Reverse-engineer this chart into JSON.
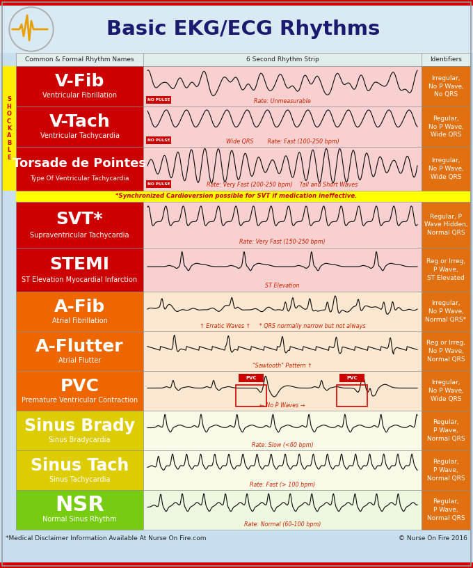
{
  "title": "Basic EKG/ECG Rhythms",
  "bg_color": "#c8dff0",
  "col_headers": [
    "Common & Formal Rhythm Names",
    "6 Second Rhythm Strip",
    "Identifiers"
  ],
  "footer_left": "*Medical Disclaimer Information Available At Nurse On Fire.com",
  "footer_right": "© Nurse On Fire 2016",
  "shockable_note": "*Synchronized Cardioversion possible for SVT if medication ineffective.",
  "top_red_bar_color": "#cc0000",
  "header_bg": "#daeaf5",
  "title_color": "#1a1a6e",
  "col_header_bg": "#e0eeee",
  "col_header_border": "#aaaaaa",
  "shockable_bg": "#ffee00",
  "shockable_fg": "#cc0000",
  "sync_bg": "#ffff00",
  "sync_fg": "#cc0000",
  "rows": [
    {
      "name": "V-Fib",
      "subname": "Ventricular Fibrillation",
      "name_bg": "#cc0000",
      "name_fg": "#ffffff",
      "strip_bg": "#f8d0d0",
      "strip_label": "Rate: Unmeasurable",
      "strip_tag": "NO PULSE",
      "identifiers": "Irregular,\nNo P Wave,\nNo QRS",
      "id_bg": "#e07010",
      "id_fg": "#ffffff",
      "ecg_type": "vfib",
      "shockable": true,
      "name_size": 18,
      "sub_size": 7
    },
    {
      "name": "V-Tach",
      "subname": "Ventricular Tachycardia",
      "name_bg": "#cc0000",
      "name_fg": "#ffffff",
      "strip_bg": "#f8d0d0",
      "strip_label": "Wide QRS        Rate: Fast (100-250 bpm)",
      "strip_tag": "NO PULSE",
      "identifiers": "Regular,\nNo P Wave,\nWide QRS",
      "id_bg": "#e07010",
      "id_fg": "#ffffff",
      "ecg_type": "vtach",
      "shockable": true,
      "name_size": 18,
      "sub_size": 7
    },
    {
      "name": "Torsade de Pointes",
      "subname": "Type Of Ventricular Tachycardia",
      "name_bg": "#cc0000",
      "name_fg": "#ffffff",
      "strip_bg": "#f8d0d0",
      "strip_label": "Rate: Very Fast (200-250 bpm)    Tall and Short Waves",
      "strip_tag": "NO PULSE",
      "identifiers": "Irregular,\nNo P Wave,\nWide QRS",
      "id_bg": "#e07010",
      "id_fg": "#ffffff",
      "ecg_type": "torsade",
      "shockable": true,
      "name_size": 13,
      "sub_size": 6.5
    },
    {
      "name": "SVT*",
      "subname": "Supraventricular Tachycardia",
      "name_bg": "#cc0000",
      "name_fg": "#ffffff",
      "strip_bg": "#f8d0d0",
      "strip_label": "Rate: Very Fast (150-250 bpm)",
      "strip_tag": "",
      "identifiers": "Regular, P\nWave Hidden,\nNormal QRS",
      "id_bg": "#e07010",
      "id_fg": "#ffffff",
      "ecg_type": "svt",
      "shockable": false,
      "name_size": 18,
      "sub_size": 7
    },
    {
      "name": "STEMI",
      "subname": "ST Elevation Myocardial Infarction",
      "name_bg": "#cc0000",
      "name_fg": "#ffffff",
      "strip_bg": "#f8d0d0",
      "strip_label": "ST Elevation",
      "strip_tag": "",
      "identifiers": "Reg or Irreg,\nP Wave,\nST Elevated",
      "id_bg": "#e07010",
      "id_fg": "#ffffff",
      "ecg_type": "stemi",
      "shockable": false,
      "name_size": 18,
      "sub_size": 7
    },
    {
      "name": "A-Fib",
      "subname": "Atrial Fibrillation",
      "name_bg": "#ee6600",
      "name_fg": "#ffffff",
      "strip_bg": "#fce8d0",
      "strip_label": "↑ Erratic Waves ↑     * QRS normally narrow but not always",
      "strip_tag": "",
      "identifiers": "Irregular,\nNo P Wave,\nNormal QRS*",
      "id_bg": "#e07010",
      "id_fg": "#ffffff",
      "ecg_type": "afib",
      "shockable": false,
      "name_size": 18,
      "sub_size": 7
    },
    {
      "name": "A-Flutter",
      "subname": "Atrial Flutter",
      "name_bg": "#ee6600",
      "name_fg": "#ffffff",
      "strip_bg": "#fce8d0",
      "strip_label": "\"Sawtooth\" Pattern ↑",
      "strip_tag": "",
      "identifiers": "Reg or Irreg,\nNo P Wave,\nNormal QRS",
      "id_bg": "#e07010",
      "id_fg": "#ffffff",
      "ecg_type": "aflutter",
      "shockable": false,
      "name_size": 18,
      "sub_size": 7
    },
    {
      "name": "PVC",
      "subname": "Premature Ventricular Contraction",
      "name_bg": "#ee6600",
      "name_fg": "#ffffff",
      "strip_bg": "#fce8d0",
      "strip_label": "← No P Waves →",
      "strip_tag": "PVC",
      "identifiers": "Irregular,\nNo P Wave,\nWide QRS",
      "id_bg": "#e07010",
      "id_fg": "#ffffff",
      "ecg_type": "pvc",
      "shockable": false,
      "name_size": 18,
      "sub_size": 7
    },
    {
      "name": "Sinus Brady",
      "subname": "Sinus Bradycardia",
      "name_bg": "#ddcc00",
      "name_fg": "#ffffff",
      "strip_bg": "#fafae8",
      "strip_label": "Rate: Slow (<60 bpm)",
      "strip_tag": "",
      "identifiers": "Regular,\nP Wave,\nNormal QRS",
      "id_bg": "#e07010",
      "id_fg": "#ffffff",
      "ecg_type": "sinus_brady",
      "shockable": false,
      "name_size": 17,
      "sub_size": 7
    },
    {
      "name": "Sinus Tach",
      "subname": "Sinus Tachycardia",
      "name_bg": "#ddcc00",
      "name_fg": "#ffffff",
      "strip_bg": "#fafae8",
      "strip_label": "Rate: Fast (> 100 bpm)",
      "strip_tag": "",
      "identifiers": "Regular,\nP Wave,\nNormal QRS",
      "id_bg": "#e07010",
      "id_fg": "#ffffff",
      "ecg_type": "sinus_tach",
      "shockable": false,
      "name_size": 17,
      "sub_size": 7
    },
    {
      "name": "NSR",
      "subname": "Normal Sinus Rhythm",
      "name_bg": "#77cc11",
      "name_fg": "#ffffff",
      "strip_bg": "#eef8e0",
      "strip_label": "Rate: Normal (60-100 bpm)",
      "strip_tag": "",
      "identifiers": "Regular,\nP Wave,\nNormal QRS",
      "id_bg": "#e07010",
      "id_fg": "#ffffff",
      "ecg_type": "nsr",
      "shockable": false,
      "name_size": 22,
      "sub_size": 7
    }
  ]
}
